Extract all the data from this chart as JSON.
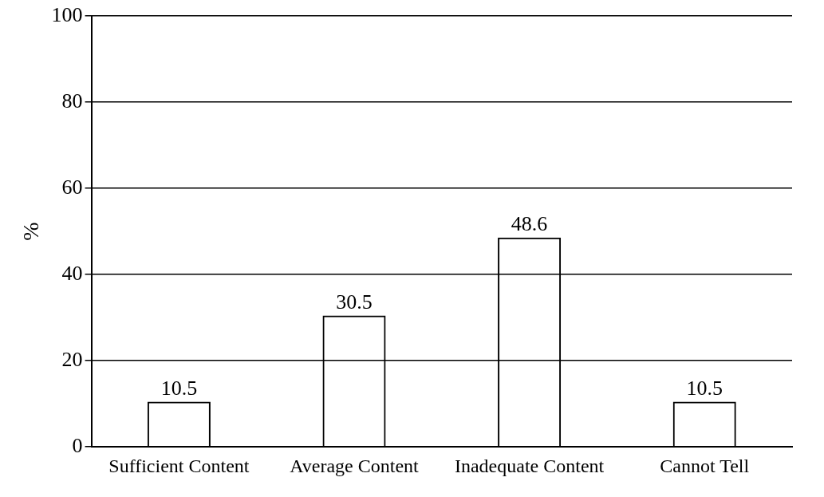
{
  "chart_data": {
    "type": "bar",
    "ylabel": "%",
    "categories": [
      "Sufficient Content",
      "Average Content",
      "Inadequate Content",
      "Cannot Tell"
    ],
    "values": [
      10.5,
      30.5,
      48.6,
      10.5
    ],
    "color": "#000000",
    "ylim": [
      0,
      100
    ],
    "yticks": [
      0,
      20,
      40,
      60,
      80,
      100
    ],
    "grid": "y",
    "legend": false,
    "data_labels": true
  }
}
